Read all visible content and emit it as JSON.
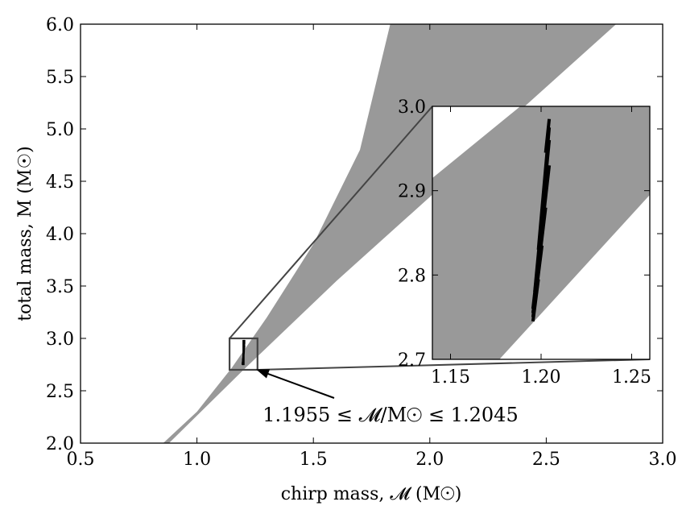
{
  "chart_data": {
    "type": "area",
    "xlabel": "chirp mass, 𝓜 (M☉)",
    "ylabel": "total mass, M (M☉)",
    "xlim": [
      0.5,
      3.0
    ],
    "ylim": [
      2.0,
      6.0
    ],
    "xticks": [
      "0.5",
      "1.0",
      "1.5",
      "2.0",
      "2.5",
      "3.0"
    ],
    "yticks": [
      "2.0",
      "2.5",
      "3.0",
      "3.5",
      "4.0",
      "4.5",
      "5.0",
      "5.5",
      "6.0"
    ],
    "shaded_region": {
      "color": "#999999",
      "description_boundaries": {
        "left_edge": [
          [
            0.855,
            2.0
          ],
          [
            1.0,
            2.3
          ],
          [
            1.15,
            2.72
          ],
          [
            1.3,
            3.2
          ],
          [
            1.5,
            3.9
          ],
          [
            1.7,
            4.8
          ],
          [
            1.83,
            6.0
          ]
        ],
        "right_edge": [
          [
            0.88,
            2.0
          ],
          [
            1.2,
            2.7
          ],
          [
            1.6,
            3.55
          ],
          [
            2.0,
            4.35
          ],
          [
            2.4,
            5.2
          ],
          [
            2.8,
            6.0
          ]
        ]
      }
    },
    "zoom_box": {
      "xlim": [
        1.14,
        1.26
      ],
      "ylim": [
        2.7,
        3.0
      ]
    },
    "inset": {
      "xlim": [
        1.14,
        1.26
      ],
      "ylim": [
        2.7,
        3.0
      ],
      "xticks": [
        "1.15",
        "1.20",
        "1.25"
      ],
      "yticks": [
        "2.7",
        "2.8",
        "2.9",
        "3.0"
      ],
      "band": {
        "upper_edge": [
          [
            1.14,
            2.915
          ],
          [
            1.1885,
            3.0
          ]
        ],
        "lower_edge": [
          [
            1.177,
            2.7
          ],
          [
            1.26,
            2.895
          ]
        ]
      },
      "segments": [
        {
          "x": [
            1.1955,
            1.1985
          ],
          "y": [
            2.745,
            2.795
          ]
        },
        {
          "x": [
            1.1955,
            1.2005
          ],
          "y": [
            2.75,
            2.835
          ]
        },
        {
          "x": [
            1.1955,
            1.2025
          ],
          "y": [
            2.755,
            2.88
          ]
        },
        {
          "x": [
            1.1955,
            1.2045
          ],
          "y": [
            2.76,
            2.93
          ]
        },
        {
          "x": [
            1.1965,
            1.2045
          ],
          "y": [
            2.78,
            2.96
          ]
        },
        {
          "x": [
            1.1985,
            1.2045
          ],
          "y": [
            2.83,
            2.975
          ]
        },
        {
          "x": [
            1.2025,
            1.2045
          ],
          "y": [
            2.945,
            2.985
          ]
        }
      ]
    },
    "annotation": {
      "text": "1.1955 ≤ 𝓜/M☉ ≤ 1.2045",
      "arrow_to": [
        1.24,
        2.72
      ]
    }
  }
}
